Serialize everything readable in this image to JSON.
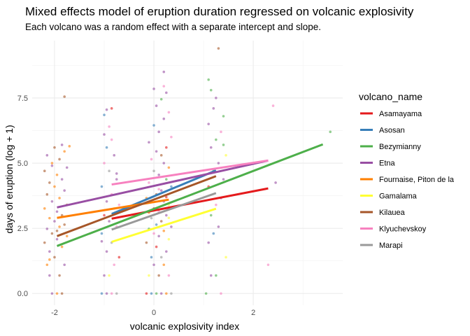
{
  "chart_data": {
    "type": "scatter",
    "title": "Mixed effects model of eruption duration regressed on volcanic explosivity",
    "subtitle": "Each volcano was a random effect with a separate intercept and slope.",
    "xlabel": "volcanic explosivity index",
    "ylabel": "days of eruption (log + 1)",
    "xlim": [
      -2.45,
      3.8
    ],
    "ylim": [
      -0.45,
      9.7
    ],
    "x_ticks": [
      -2,
      0,
      2
    ],
    "y_ticks": [
      0.0,
      2.5,
      5.0,
      7.5
    ],
    "y_tick_labels": [
      "0.0",
      "2.5",
      "5.0",
      "7.5"
    ],
    "grid": true,
    "legend_title": "volcano_name",
    "legend_position": "right",
    "series": [
      {
        "name": "Asamayama",
        "color": "#E41A1C",
        "line": [
          [
            -0.85,
            2.87
          ],
          [
            2.3,
            4.03
          ]
        ]
      },
      {
        "name": "Asosan",
        "color": "#377EB8",
        "line": [
          [
            -0.85,
            3.05
          ],
          [
            1.25,
            4.72
          ]
        ]
      },
      {
        "name": "Bezymianny",
        "color": "#4DAF4A",
        "line": [
          [
            -1.95,
            1.82
          ],
          [
            3.4,
            5.72
          ]
        ]
      },
      {
        "name": "Etna",
        "color": "#984EA3",
        "line": [
          [
            -1.95,
            3.3
          ],
          [
            2.3,
            5.1
          ]
        ]
      },
      {
        "name": "Fournaise, Piton de la",
        "color": "#FF7F00",
        "line": [
          [
            -1.95,
            2.9
          ],
          [
            0.3,
            3.6
          ]
        ]
      },
      {
        "name": "Gamalama",
        "color": "#FFFF33",
        "line": [
          [
            -0.85,
            1.98
          ],
          [
            1.25,
            3.25
          ]
        ]
      },
      {
        "name": "Kilauea",
        "color": "#A65628",
        "line": [
          [
            -1.95,
            2.2
          ],
          [
            1.25,
            4.5
          ]
        ]
      },
      {
        "name": "Klyuchevskoy",
        "color": "#F781BF",
        "line": [
          [
            -0.85,
            4.18
          ],
          [
            2.3,
            5.1
          ]
        ]
      },
      {
        "name": "Marapi",
        "color": "#999999",
        "line": [
          [
            -0.85,
            2.45
          ],
          [
            1.25,
            3.85
          ]
        ]
      }
    ],
    "points": [
      [
        -2.05,
        0.0,
        "Etna"
      ],
      [
        -1.95,
        0.0,
        "Fournaise, Piton de la"
      ],
      [
        -1.85,
        0.0,
        "Kilauea"
      ],
      [
        -2.1,
        0.69,
        "Etna"
      ],
      [
        -1.9,
        0.69,
        "Kilauea"
      ],
      [
        -2.15,
        1.1,
        "Fournaise, Piton de la"
      ],
      [
        -1.8,
        1.1,
        "Etna"
      ],
      [
        -2.0,
        1.39,
        "Kilauea"
      ],
      [
        -2.1,
        1.61,
        "Etna"
      ],
      [
        -1.85,
        1.79,
        "Fournaise, Piton de la"
      ],
      [
        -2.2,
        1.95,
        "Kilauea"
      ],
      [
        -1.95,
        2.08,
        "Etna"
      ],
      [
        -1.75,
        2.2,
        "Fournaise, Piton de la"
      ],
      [
        -2.05,
        2.3,
        "Kilauea"
      ],
      [
        -2.15,
        2.48,
        "Etna"
      ],
      [
        -1.9,
        2.56,
        "Fournaise, Piton de la"
      ],
      [
        -1.8,
        2.64,
        "Kilauea"
      ],
      [
        -2.0,
        2.77,
        "Etna"
      ],
      [
        -2.1,
        2.89,
        "Fournaise, Piton de la"
      ],
      [
        -1.85,
        3.0,
        "Kilauea"
      ],
      [
        -1.95,
        3.14,
        "Etna"
      ],
      [
        -2.2,
        3.26,
        "Fournaise, Piton de la"
      ],
      [
        -1.75,
        3.4,
        "Kilauea"
      ],
      [
        -2.05,
        3.53,
        "Etna"
      ],
      [
        -1.9,
        3.66,
        "Fournaise, Piton de la"
      ],
      [
        -2.15,
        3.8,
        "Kilauea"
      ],
      [
        -1.8,
        3.95,
        "Etna"
      ],
      [
        -2.0,
        4.1,
        "Fournaise, Piton de la"
      ],
      [
        -2.1,
        4.25,
        "Kilauea"
      ],
      [
        -1.85,
        4.38,
        "Etna"
      ],
      [
        -1.95,
        4.55,
        "Fournaise, Piton de la"
      ],
      [
        -2.2,
        4.7,
        "Kilauea"
      ],
      [
        -1.75,
        4.83,
        "Etna"
      ],
      [
        -2.05,
        5.0,
        "Fournaise, Piton de la"
      ],
      [
        -1.9,
        5.15,
        "Kilauea"
      ],
      [
        -2.15,
        5.3,
        "Etna"
      ],
      [
        -1.8,
        5.45,
        "Fournaise, Piton de la"
      ],
      [
        -2.0,
        5.6,
        "Kilauea"
      ],
      [
        -1.85,
        5.7,
        "Etna"
      ],
      [
        -1.7,
        5.65,
        "Fournaise, Piton de la"
      ],
      [
        -1.8,
        7.55,
        "Kilauea"
      ],
      [
        -2.1,
        1.3,
        "Fournaise, Piton de la"
      ],
      [
        -1.95,
        2.4,
        "Kilauea"
      ],
      [
        -2.05,
        4.9,
        "Etna"
      ],
      [
        -1.05,
        0.0,
        "Asosan"
      ],
      [
        -0.95,
        0.0,
        "Etna"
      ],
      [
        -0.85,
        0.0,
        "Klyuchevskoy"
      ],
      [
        -0.75,
        0.0,
        "Marapi"
      ],
      [
        -0.9,
        0.69,
        "Gamalama"
      ],
      [
        -1.0,
        0.69,
        "Etna"
      ],
      [
        -0.8,
        1.1,
        "Klyuchevskoy"
      ],
      [
        -0.7,
        1.39,
        "Asamayama"
      ],
      [
        -0.95,
        1.61,
        "Etna"
      ],
      [
        -0.85,
        1.95,
        "Marapi"
      ],
      [
        -1.05,
        2.3,
        "Asosan"
      ],
      [
        -0.75,
        2.56,
        "Klyuchevskoy"
      ],
      [
        -0.9,
        2.77,
        "Etna"
      ],
      [
        -1.0,
        3.0,
        "Asamayama"
      ],
      [
        -0.8,
        3.26,
        "Gamalama"
      ],
      [
        -0.95,
        3.53,
        "Etna"
      ],
      [
        -0.85,
        3.8,
        "Klyuchevskoy"
      ],
      [
        -1.05,
        4.1,
        "Asosan"
      ],
      [
        -0.75,
        4.38,
        "Etna"
      ],
      [
        -0.9,
        4.7,
        "Marapi"
      ],
      [
        -1.0,
        5.0,
        "Klyuchevskoy"
      ],
      [
        -0.8,
        5.3,
        "Etna"
      ],
      [
        -0.95,
        5.6,
        "Asosan"
      ],
      [
        -0.85,
        5.9,
        "Klyuchevskoy"
      ],
      [
        -1.0,
        6.1,
        "Etna"
      ],
      [
        -0.9,
        6.4,
        "Klyuchevskoy"
      ],
      [
        -1.0,
        6.85,
        "Asosan"
      ],
      [
        -0.95,
        7.05,
        "Etna"
      ],
      [
        -0.85,
        7.1,
        "Asamayama"
      ],
      [
        -0.75,
        4.6,
        "Etna"
      ],
      [
        -0.7,
        3.4,
        "Klyuchevskoy"
      ],
      [
        -1.05,
        2.0,
        "Etna"
      ],
      [
        -0.15,
        0.0,
        "Asamayama"
      ],
      [
        -0.05,
        0.0,
        "Asosan"
      ],
      [
        0.05,
        0.0,
        "Bezymianny"
      ],
      [
        0.15,
        0.0,
        "Etna"
      ],
      [
        0.25,
        0.0,
        "Fournaise, Piton de la"
      ],
      [
        0.35,
        0.0,
        "Marapi"
      ],
      [
        -0.1,
        0.69,
        "Gamalama"
      ],
      [
        0.1,
        0.69,
        "Kilauea"
      ],
      [
        0.3,
        0.69,
        "Klyuchevskoy"
      ],
      [
        0.0,
        1.1,
        "Etna"
      ],
      [
        0.2,
        1.1,
        "Fournaise, Piton de la"
      ],
      [
        -0.05,
        1.39,
        "Asosan"
      ],
      [
        0.15,
        1.39,
        "Marapi"
      ],
      [
        0.25,
        1.61,
        "Etna"
      ],
      [
        0.05,
        1.79,
        "Asamayama"
      ],
      [
        -0.15,
        1.95,
        "Kilauea"
      ],
      [
        0.3,
        2.08,
        "Gamalama"
      ],
      [
        0.1,
        2.2,
        "Etna"
      ],
      [
        0.0,
        2.3,
        "Klyuchevskoy"
      ],
      [
        0.2,
        2.4,
        "Fournaise, Piton de la"
      ],
      [
        -0.1,
        2.48,
        "Bezymianny"
      ],
      [
        0.35,
        2.56,
        "Etna"
      ],
      [
        0.05,
        2.64,
        "Asosan"
      ],
      [
        0.15,
        2.77,
        "Kilauea"
      ],
      [
        -0.05,
        2.89,
        "Marapi"
      ],
      [
        0.25,
        3.0,
        "Etna"
      ],
      [
        0.1,
        3.14,
        "Klyuchevskoy"
      ],
      [
        0.0,
        3.26,
        "Asamayama"
      ],
      [
        0.3,
        3.4,
        "Gamalama"
      ],
      [
        0.2,
        3.53,
        "Etna"
      ],
      [
        -0.15,
        3.66,
        "Fournaise, Piton de la"
      ],
      [
        0.05,
        3.8,
        "Kilauea"
      ],
      [
        0.15,
        3.95,
        "Etna"
      ],
      [
        0.35,
        4.1,
        "Asosan"
      ],
      [
        -0.1,
        4.25,
        "Klyuchevskoy"
      ],
      [
        0.25,
        4.38,
        "Bezymianny"
      ],
      [
        0.1,
        4.55,
        "Etna"
      ],
      [
        0.0,
        4.7,
        "Marapi"
      ],
      [
        0.3,
        4.83,
        "Fournaise, Piton de la"
      ],
      [
        0.2,
        5.0,
        "Etna"
      ],
      [
        -0.05,
        5.15,
        "Klyuchevskoy"
      ],
      [
        0.15,
        5.3,
        "Kilauea"
      ],
      [
        0.05,
        5.45,
        "Etna"
      ],
      [
        0.25,
        5.6,
        "Asamayama"
      ],
      [
        -0.1,
        5.8,
        "Etna"
      ],
      [
        0.35,
        6.0,
        "Klyuchevskoy"
      ],
      [
        0.1,
        6.2,
        "Etna"
      ],
      [
        0.0,
        6.45,
        "Asosan"
      ],
      [
        0.2,
        6.7,
        "Etna"
      ],
      [
        0.3,
        6.95,
        "Klyuchevskoy"
      ],
      [
        0.05,
        7.2,
        "Etna"
      ],
      [
        0.15,
        7.45,
        "Bezymianny"
      ],
      [
        0.25,
        7.7,
        "Etna"
      ],
      [
        0.2,
        7.95,
        "Klyuchevskoy"
      ],
      [
        0.0,
        7.85,
        "Etna"
      ],
      [
        0.2,
        8.5,
        "Etna"
      ],
      [
        -0.1,
        3.1,
        "Fournaise, Piton de la"
      ],
      [
        0.3,
        2.9,
        "Gamalama"
      ],
      [
        0.1,
        4.0,
        "Klyuchevskoy"
      ],
      [
        0.25,
        3.7,
        "Asamayama"
      ],
      [
        1.05,
        0.0,
        "Bezymianny"
      ],
      [
        1.15,
        0.69,
        "Etna"
      ],
      [
        1.25,
        0.69,
        "Bezymianny"
      ],
      [
        1.35,
        0.0,
        "Klyuchevskoy"
      ],
      [
        1.45,
        1.39,
        "Gamalama"
      ],
      [
        1.1,
        1.95,
        "Etna"
      ],
      [
        1.2,
        2.3,
        "Asosan"
      ],
      [
        1.3,
        2.56,
        "Etna"
      ],
      [
        1.15,
        3.0,
        "Bezymianny"
      ],
      [
        1.25,
        3.4,
        "Klyuchevskoy"
      ],
      [
        1.35,
        3.66,
        "Etna"
      ],
      [
        1.1,
        4.1,
        "Asamayama"
      ],
      [
        1.4,
        4.38,
        "Etna"
      ],
      [
        1.2,
        4.7,
        "Bezymianny"
      ],
      [
        1.3,
        5.0,
        "Etna"
      ],
      [
        1.45,
        5.3,
        "Gamalama"
      ],
      [
        1.15,
        5.6,
        "Etna"
      ],
      [
        1.25,
        5.9,
        "Bezymianny"
      ],
      [
        1.35,
        6.2,
        "Klyuchevskoy"
      ],
      [
        1.1,
        6.5,
        "Etna"
      ],
      [
        1.4,
        6.8,
        "Bezymianny"
      ],
      [
        1.2,
        7.1,
        "Etna"
      ],
      [
        1.15,
        7.8,
        "Bezymianny"
      ],
      [
        1.1,
        8.2,
        "Bezymianny"
      ],
      [
        1.3,
        9.4,
        "Kilauea"
      ],
      [
        1.25,
        7.5,
        "Etna"
      ],
      [
        1.4,
        5.7,
        "Bezymianny"
      ],
      [
        2.3,
        1.1,
        "Klyuchevskoy"
      ],
      [
        2.45,
        4.25,
        "Etna"
      ],
      [
        2.4,
        7.2,
        "Klyuchevskoy"
      ],
      [
        3.55,
        6.2,
        "Bezymianny"
      ]
    ]
  }
}
